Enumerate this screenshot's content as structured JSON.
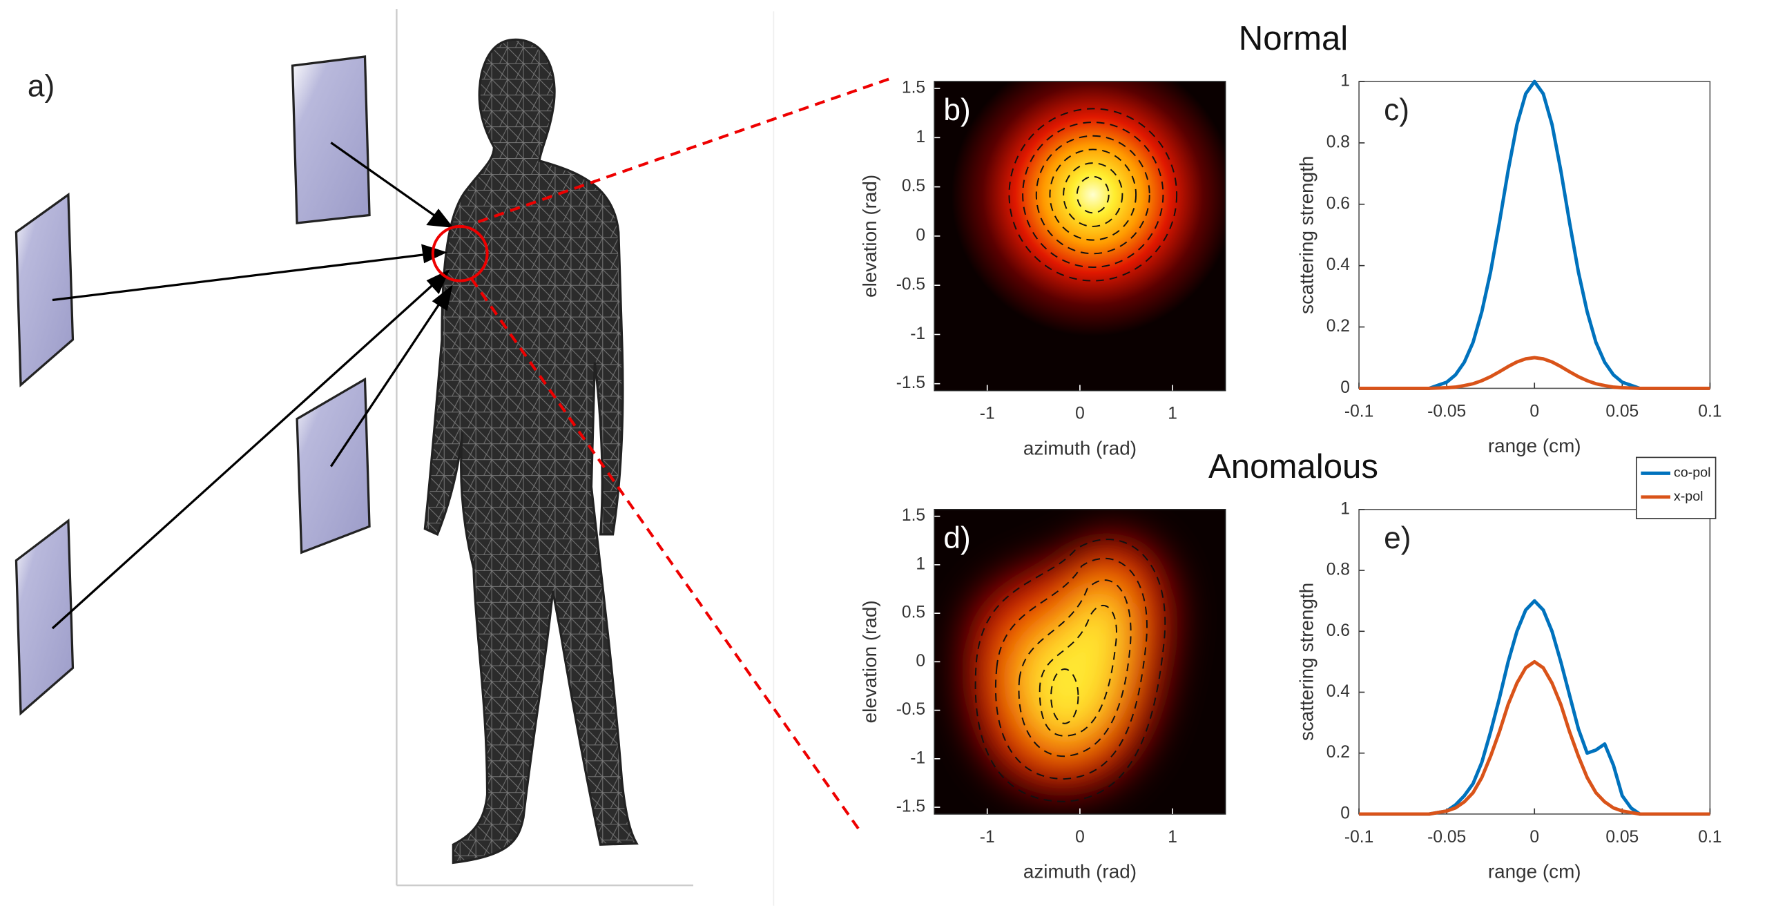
{
  "diagram": {
    "label": "a)"
  },
  "chart_data": [
    {
      "type": "heatmap",
      "title": "Normal",
      "panel_label": "b)",
      "colormap": "hot",
      "x_label": "azimuth (rad)",
      "y_label": "elevation (rad)",
      "xlim": [
        -1.57,
        1.57
      ],
      "ylim": [
        -1.57,
        1.57
      ],
      "xticks": [
        -1,
        0,
        1
      ],
      "yticks": [
        -1.5,
        -1,
        -0.5,
        0,
        0.5,
        1,
        1.5
      ]
    },
    {
      "type": "line",
      "panel_label": "c)",
      "x_label": "range (cm)",
      "y_label": "scattering strength",
      "xlim": [
        -0.1,
        0.1
      ],
      "ylim": [
        0,
        1
      ],
      "xticks": [
        -0.1,
        -0.05,
        0,
        0.05,
        0.1
      ],
      "yticks": [
        0,
        0.2,
        0.4,
        0.6,
        0.8,
        1
      ],
      "x": [
        -0.1,
        -0.06,
        -0.055,
        -0.05,
        -0.045,
        -0.04,
        -0.035,
        -0.03,
        -0.025,
        -0.02,
        -0.015,
        -0.01,
        -0.005,
        0,
        0.005,
        0.01,
        0.015,
        0.02,
        0.025,
        0.03,
        0.035,
        0.04,
        0.045,
        0.05,
        0.055,
        0.06,
        0.1
      ],
      "series": [
        {
          "color": "#0072bd",
          "values": [
            0,
            0,
            0.01,
            0.02,
            0.044,
            0.085,
            0.15,
            0.25,
            0.38,
            0.54,
            0.71,
            0.86,
            0.96,
            1,
            0.96,
            0.86,
            0.71,
            0.54,
            0.38,
            0.25,
            0.15,
            0.085,
            0.044,
            0.02,
            0.01,
            0,
            0
          ]
        },
        {
          "color": "#d95319",
          "values": [
            0,
            0,
            0.001,
            0.002,
            0.004,
            0.009,
            0.015,
            0.025,
            0.038,
            0.054,
            0.071,
            0.086,
            0.096,
            0.1,
            0.096,
            0.086,
            0.071,
            0.054,
            0.038,
            0.025,
            0.015,
            0.009,
            0.004,
            0.002,
            0.001,
            0,
            0
          ]
        }
      ]
    },
    {
      "type": "heatmap",
      "title": "Anomalous",
      "panel_label": "d)",
      "colormap": "hot",
      "x_label": "azimuth (rad)",
      "y_label": "elevation (rad)",
      "xlim": [
        -1.57,
        1.57
      ],
      "ylim": [
        -1.57,
        1.57
      ],
      "xticks": [
        -1,
        0,
        1
      ],
      "yticks": [
        -1.5,
        -1,
        -0.5,
        0,
        0.5,
        1,
        1.5
      ]
    },
    {
      "type": "line",
      "panel_label": "e)",
      "x_label": "range (cm)",
      "y_label": "scattering strength",
      "xlim": [
        -0.1,
        0.1
      ],
      "ylim": [
        0,
        1
      ],
      "xticks": [
        -0.1,
        -0.05,
        0,
        0.05,
        0.1
      ],
      "yticks": [
        0,
        0.2,
        0.4,
        0.6,
        0.8,
        1
      ],
      "legend": "upper-right",
      "x": [
        -0.1,
        -0.06,
        -0.055,
        -0.05,
        -0.045,
        -0.04,
        -0.035,
        -0.03,
        -0.025,
        -0.02,
        -0.015,
        -0.01,
        -0.005,
        0,
        0.005,
        0.01,
        0.015,
        0.02,
        0.025,
        0.03,
        0.035,
        0.04,
        0.045,
        0.05,
        0.055,
        0.06,
        0.1
      ],
      "series": [
        {
          "name": "co-pol",
          "color": "#0072bd",
          "values": [
            0,
            0,
            0.005,
            0.01,
            0.03,
            0.06,
            0.1,
            0.17,
            0.27,
            0.38,
            0.5,
            0.6,
            0.67,
            0.7,
            0.67,
            0.6,
            0.5,
            0.39,
            0.28,
            0.2,
            0.21,
            0.23,
            0.16,
            0.06,
            0.02,
            0,
            0
          ]
        },
        {
          "name": "x-pol",
          "color": "#d95319",
          "values": [
            0,
            0,
            0.005,
            0.01,
            0.02,
            0.04,
            0.07,
            0.12,
            0.19,
            0.27,
            0.36,
            0.43,
            0.48,
            0.5,
            0.48,
            0.43,
            0.36,
            0.27,
            0.19,
            0.12,
            0.07,
            0.04,
            0.02,
            0.01,
            0.005,
            0,
            0
          ]
        }
      ]
    }
  ]
}
